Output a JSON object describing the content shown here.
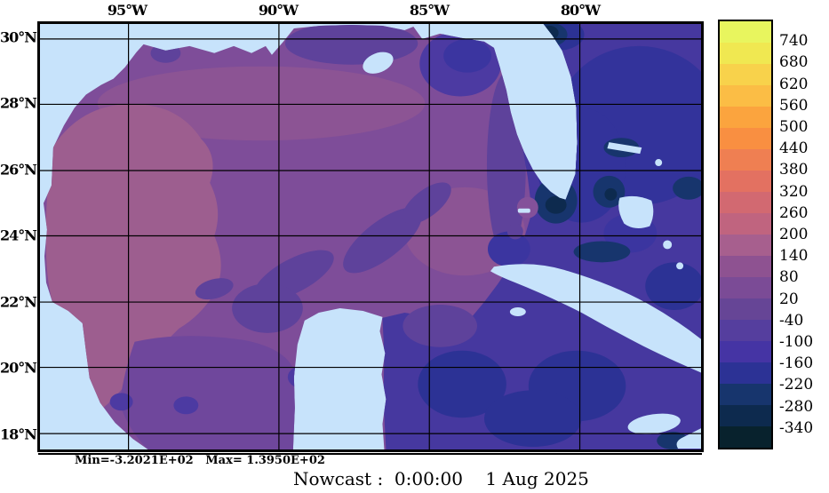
{
  "page": {
    "background": "#ffffff"
  },
  "map": {
    "x_axis_labels": [
      "95°W",
      "90°W",
      "85°W",
      "80°W"
    ],
    "y_axis_labels": [
      "30°N",
      "28°N",
      "26°N",
      "24°N",
      "22°N",
      "20°N",
      "18°N"
    ],
    "palette": {
      "land": "#c7e3fb",
      "gulf": "#7e4d99",
      "band": "#8c5494",
      "rose": "#9d5e8f",
      "streak": "#5e429b",
      "campeche": "#6f479c",
      "eddy": "#4c3aa2",
      "eastern": "#46389f",
      "royal": "#33339b",
      "indigo": "#3b35a0",
      "carib": "#2c3295",
      "navy": "#17356d",
      "abyss": "#0d2a4e",
      "mauve": "#84519a",
      "grid": "#000000",
      "frame": "#000000"
    }
  },
  "colorbar": {
    "tick_labels": [
      "740",
      "680",
      "620",
      "560",
      "500",
      "440",
      "380",
      "320",
      "260",
      "200",
      "140",
      "80",
      "20",
      "-40",
      "-100",
      "-160",
      "-220",
      "-280",
      "-340"
    ],
    "cell_colors": [
      "#e8f55e",
      "#f0e851",
      "#f8d24b",
      "#fbbd45",
      "#fba43e",
      "#f98f41",
      "#ef7f52",
      "#e37161",
      "#d26971",
      "#c0647f",
      "#a75f8e",
      "#8e5291",
      "#7b4b96",
      "#664596",
      "#553e9e",
      "#4534a4",
      "#2c3295",
      "#17356d",
      "#0d2a4e",
      "#08222d"
    ]
  },
  "footer": {
    "stats": "Min=-3.2021E+02   Max= 1.3950E+02",
    "title": "Nowcast :  0:00:00    1 Aug 2025"
  },
  "chart_data": {
    "type": "heatmap",
    "title": "Nowcast :  0:00:00    1 Aug 2025",
    "x_ticks": [
      "95°W",
      "90°W",
      "85°W",
      "80°W"
    ],
    "y_ticks": [
      "30°N",
      "28°N",
      "26°N",
      "24°N",
      "22°N",
      "20°N",
      "18°N"
    ],
    "colorbar_ticks": [
      740,
      680,
      620,
      560,
      500,
      440,
      380,
      320,
      260,
      200,
      140,
      80,
      20,
      -40,
      -100,
      -160,
      -220,
      -280,
      -340
    ],
    "colorbar_step": 60,
    "field_min": -320.21,
    "field_max": 139.5,
    "legend_position": "right",
    "grid": true
  }
}
